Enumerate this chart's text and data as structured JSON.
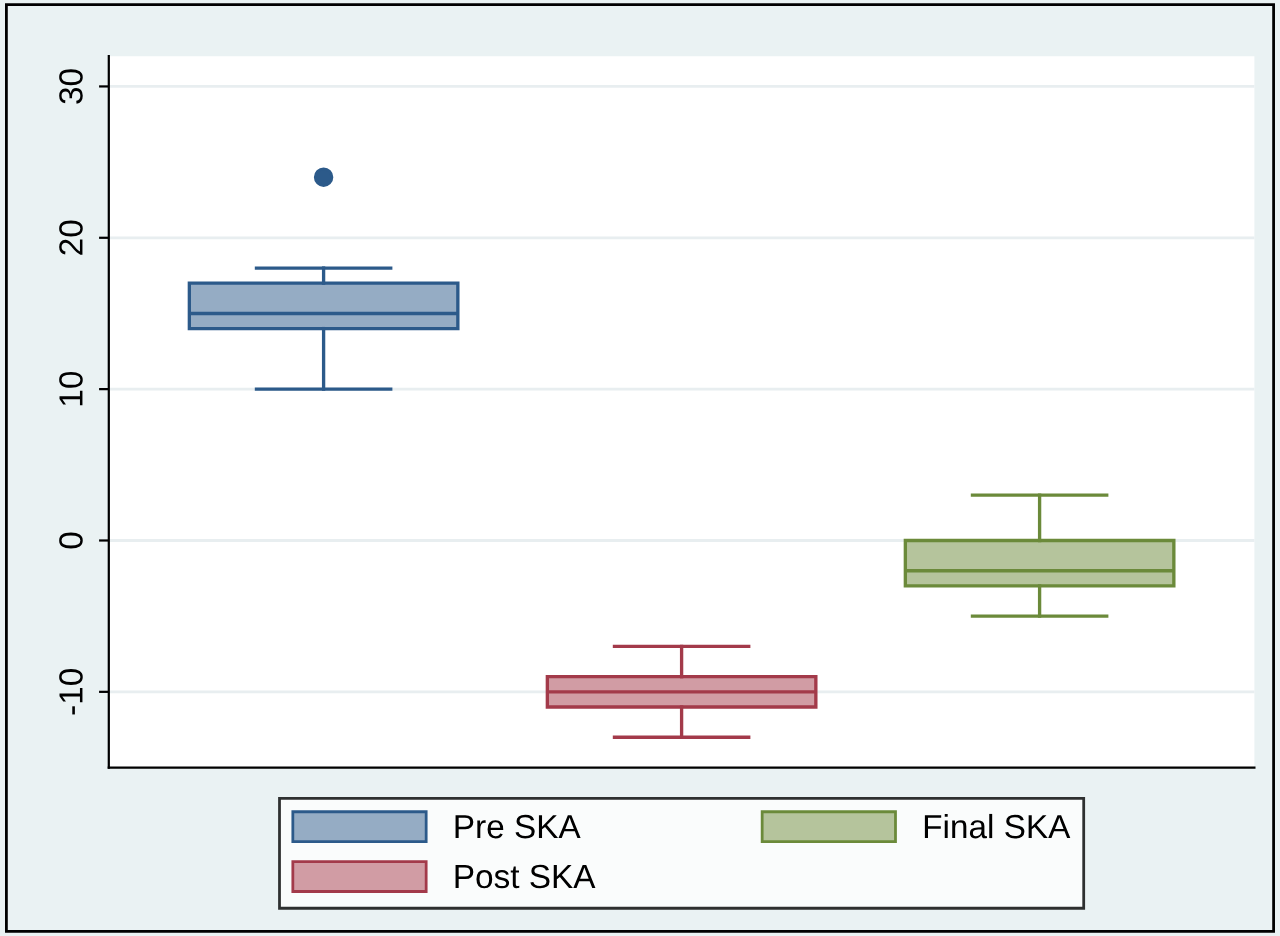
{
  "chart_data": {
    "type": "box",
    "categories": [
      null,
      null,
      null
    ],
    "series": [
      {
        "name": "Pre SKA",
        "color": "#2c5a8a",
        "boxes": [
          {
            "low": 10,
            "q1": 14,
            "median": 15,
            "q3": 17,
            "high": 18,
            "outliers": [
              24
            ]
          },
          null,
          null
        ]
      },
      {
        "name": "Post SKA",
        "color": "#a33a4a",
        "boxes": [
          null,
          {
            "low": -13,
            "q1": -11,
            "median": -10,
            "q3": -9,
            "high": -7
          },
          null
        ]
      },
      {
        "name": "Final SKA",
        "color": "#6b8a3a",
        "boxes": [
          null,
          null,
          {
            "low": -5,
            "q1": -3,
            "median": -2,
            "q3": 0,
            "high": 3
          }
        ]
      }
    ],
    "ylim": [
      -15,
      32
    ],
    "yticks": [
      -10,
      0,
      10,
      20,
      30
    ],
    "grid": "y",
    "legend": "bottom"
  }
}
